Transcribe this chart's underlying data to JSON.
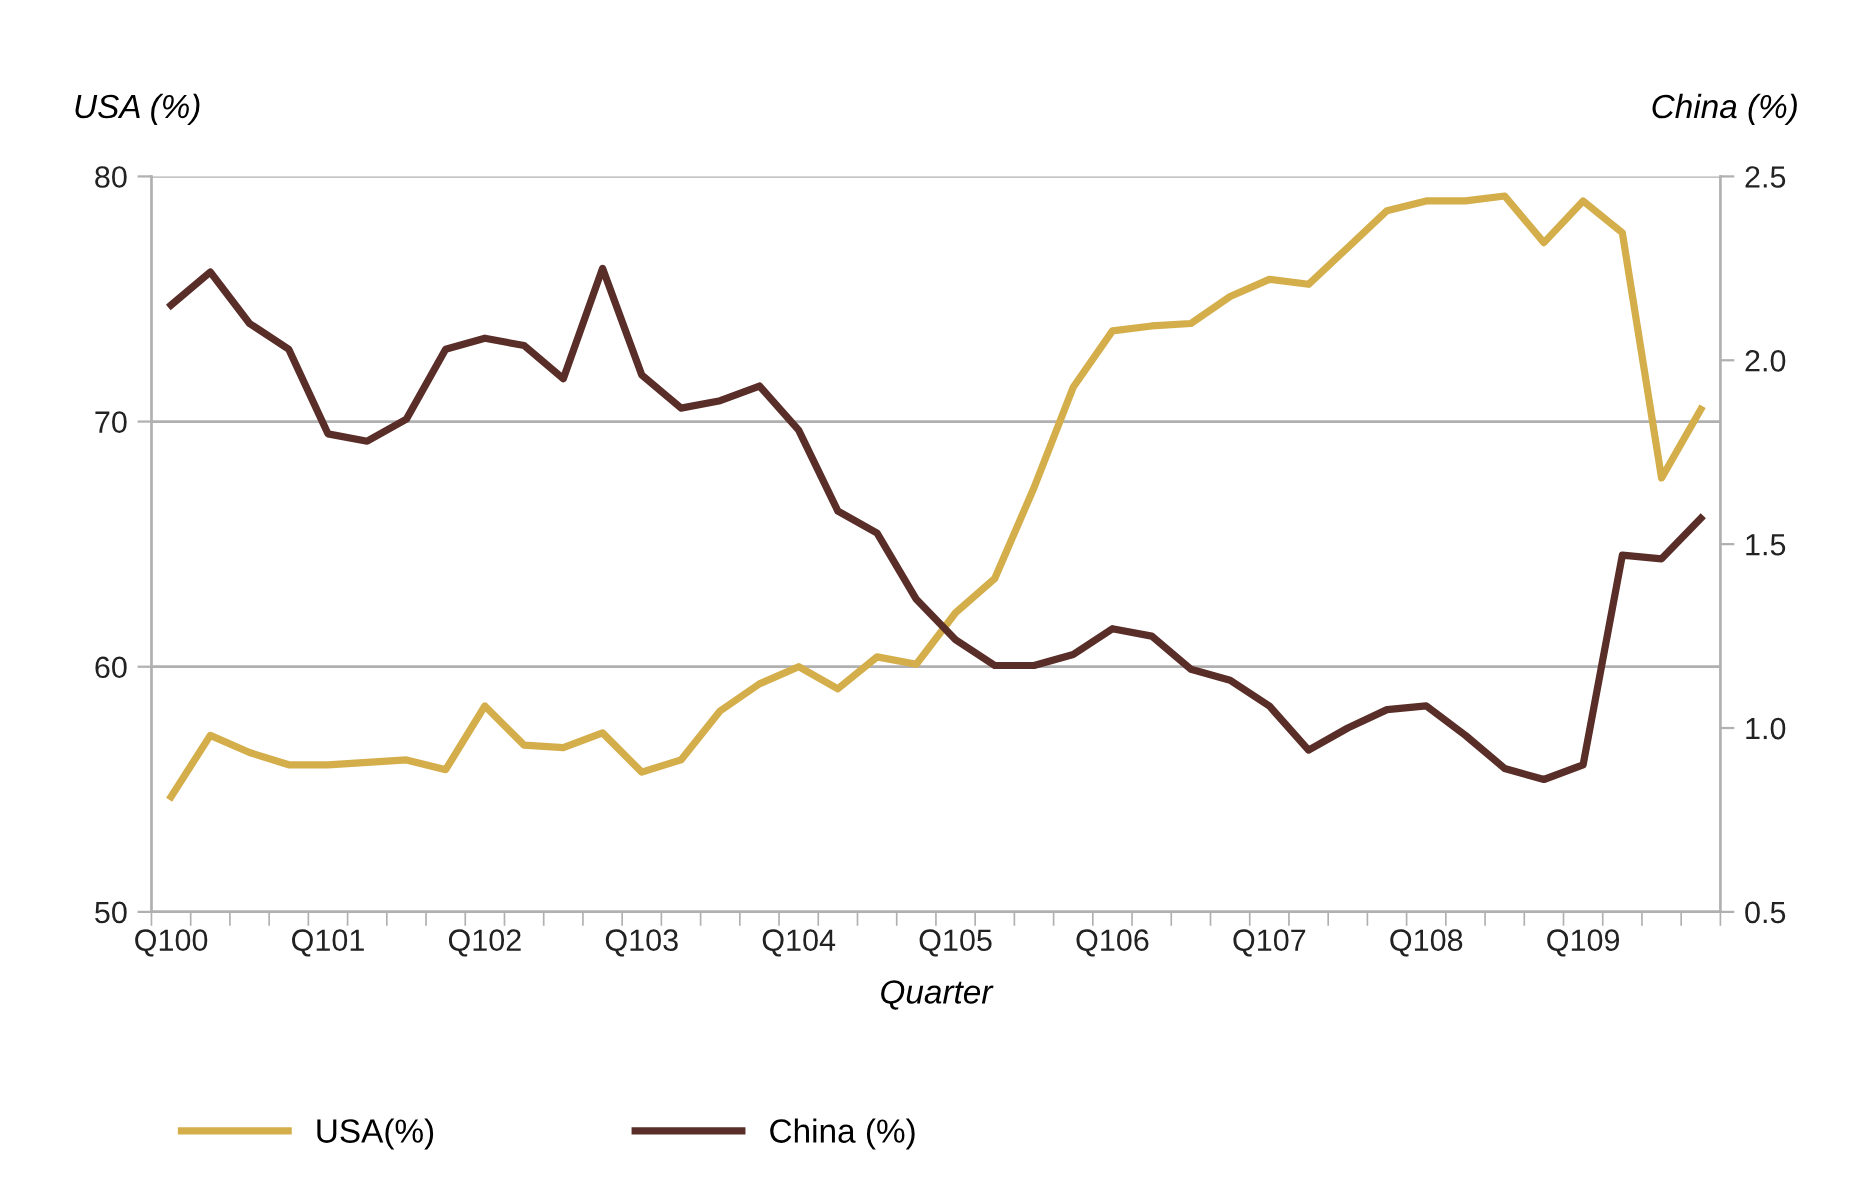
{
  "chart_data": {
    "type": "line",
    "xlabel": "Quarter",
    "ylabel": "USA (%)",
    "y2label": "China (%)",
    "categories": [
      "Q100",
      null,
      null,
      null,
      "Q101",
      null,
      null,
      null,
      "Q102",
      null,
      null,
      null,
      "Q103",
      null,
      null,
      null,
      "Q104",
      null,
      null,
      null,
      "Q105",
      null,
      null,
      null,
      "Q106",
      null,
      null,
      null,
      "Q107",
      null,
      null,
      null,
      "Q108",
      null,
      null,
      null,
      "Q109",
      null,
      null,
      null
    ],
    "series": [
      {
        "name": "USA(%)",
        "color": "#d4ae4a",
        "values": [
          54.7,
          57.2,
          56.5,
          56.0,
          56.0,
          56.1,
          56.2,
          55.8,
          58.4,
          56.8,
          56.7,
          57.3,
          55.7,
          56.2,
          58.2,
          59.3,
          60.0,
          59.1,
          60.4,
          60.1,
          62.2,
          63.6,
          67.3,
          71.4,
          73.7,
          73.9,
          74.0,
          75.1,
          75.8,
          75.6,
          77.1,
          78.6,
          79.0,
          79.0,
          79.2,
          77.3,
          79.0,
          77.7,
          67.7,
          70.5
        ]
      },
      {
        "name": "China (%)",
        "color": "#5a2e28",
        "axis": "y2",
        "values": [
          2.15,
          2.24,
          2.1,
          2.03,
          1.8,
          1.78,
          1.84,
          2.03,
          2.06,
          2.04,
          1.95,
          2.25,
          1.96,
          1.87,
          1.89,
          1.93,
          1.81,
          1.59,
          1.53,
          1.35,
          1.24,
          1.17,
          1.17,
          1.2,
          1.27,
          1.25,
          1.16,
          1.13,
          1.06,
          0.94,
          1.0,
          1.05,
          1.06,
          0.98,
          0.89,
          0.86,
          0.9,
          1.47,
          1.46,
          1.57
        ]
      }
    ],
    "ylim": [
      50,
      80
    ],
    "yticks": [
      50,
      60,
      70,
      80
    ],
    "y2lim": [
      0.5,
      2.5
    ],
    "y2ticks": [
      {
        "value": 0.5,
        "label": "0.5"
      },
      {
        "value": 1.0,
        "label": "1.0"
      },
      {
        "value": 1.5,
        "label": "1.5"
      },
      {
        "value": 2.0,
        "label": "2.0"
      },
      {
        "value": 2.5,
        "label": "2.5"
      }
    ],
    "grid": "y",
    "legend": "bottom",
    "marker": "none",
    "line_style": "solid"
  }
}
